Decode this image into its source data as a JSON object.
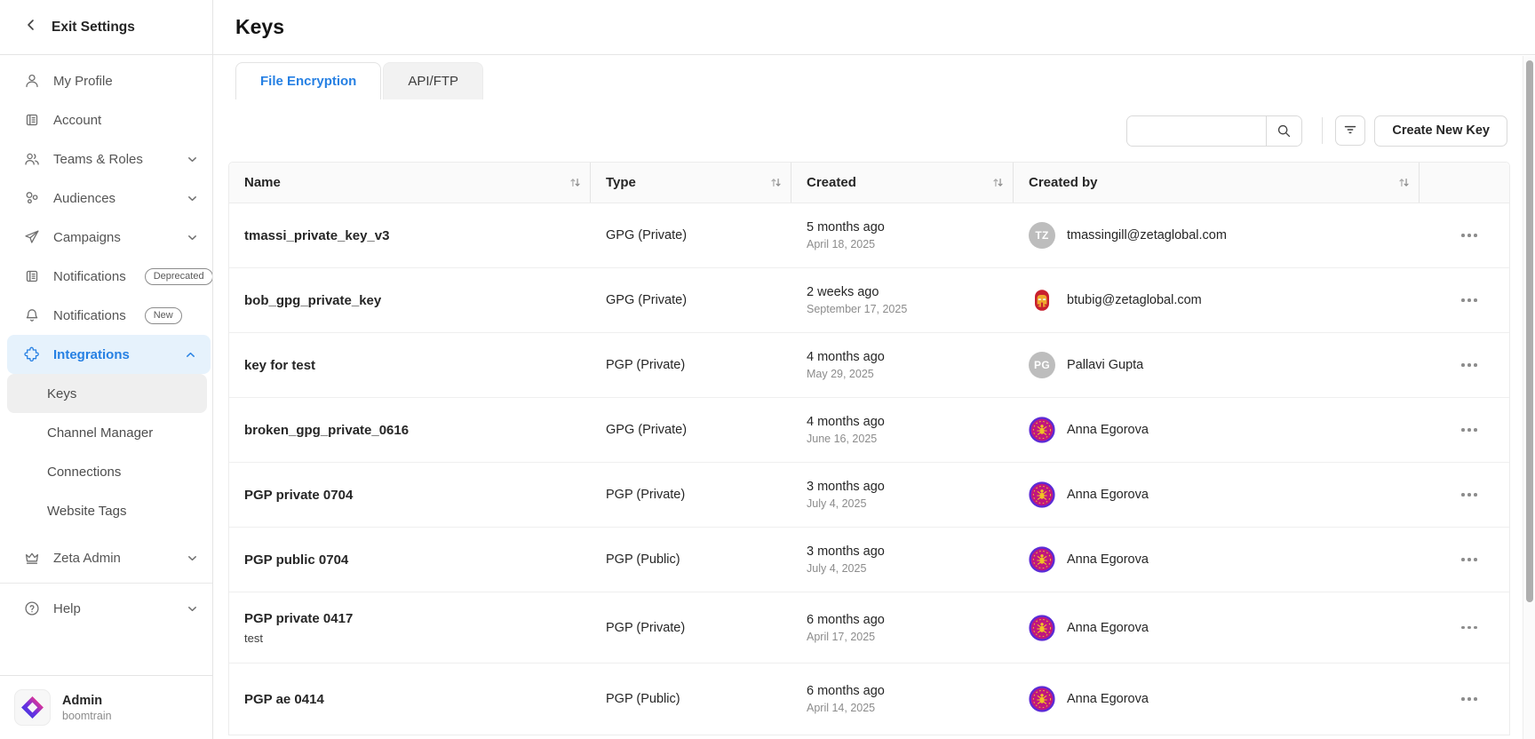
{
  "colors": {
    "accent": "#2680e3",
    "accent_bg": "#e6f2fc"
  },
  "sidebar": {
    "exit_label": "Exit Settings",
    "items": [
      {
        "label": "My Profile",
        "icon": "user"
      },
      {
        "label": "Account",
        "icon": "org"
      },
      {
        "label": "Teams & Roles",
        "icon": "users",
        "chevron": "down"
      },
      {
        "label": "Audiences",
        "icon": "bubbles",
        "chevron": "down"
      },
      {
        "label": "Campaigns",
        "icon": "plane",
        "chevron": "down"
      },
      {
        "label": "Notifications",
        "icon": "org",
        "badge": "Deprecated"
      },
      {
        "label": "Notifications",
        "icon": "bell",
        "badge": "New"
      },
      {
        "label": "Integrations",
        "icon": "puzzle",
        "chevron": "up",
        "active": true
      }
    ],
    "sub_items": [
      "Keys",
      "Channel Manager",
      "Connections",
      "Website Tags"
    ],
    "lower_items": [
      {
        "label": "Zeta Admin",
        "icon": "crown",
        "chevron": "down"
      },
      {
        "label": "Help",
        "icon": "help",
        "chevron": "down"
      }
    ],
    "account": {
      "name": "Admin",
      "org": "boomtrain"
    }
  },
  "header": {
    "title": "Keys"
  },
  "tabs": [
    {
      "label": "File Encryption",
      "active": true
    },
    {
      "label": "API/FTP",
      "active": false
    }
  ],
  "toolbar": {
    "search_value": "",
    "create_label": "Create New Key"
  },
  "table": {
    "columns": [
      "Name",
      "Type",
      "Created",
      "Created by"
    ],
    "rows": [
      {
        "name": "tmassi_private_key_v3",
        "type": "GPG (Private)",
        "created_rel": "5 months ago",
        "created_date": "April 18, 2025",
        "creator": "tmassingill@zetaglobal.com",
        "avatar": "TZ",
        "avatar_type": "initials"
      },
      {
        "name": "bob_gpg_private_key",
        "type": "GPG (Private)",
        "created_rel": "2 weeks ago",
        "created_date": "September 17, 2025",
        "creator": "btubig@zetaglobal.com",
        "avatar": "",
        "avatar_type": "ironman"
      },
      {
        "name": "key for test",
        "type": "PGP (Private)",
        "created_rel": "4 months ago",
        "created_date": "May 29, 2025",
        "creator": "Pallavi Gupta",
        "avatar": "PG",
        "avatar_type": "initials"
      },
      {
        "name": "broken_gpg_private_0616",
        "type": "GPG (Private)",
        "created_rel": "4 months ago",
        "created_date": "June 16, 2025",
        "creator": "Anna Egorova",
        "avatar": "",
        "avatar_type": "bug"
      },
      {
        "name": "PGP private 0704",
        "type": "PGP (Private)",
        "created_rel": "3 months ago",
        "created_date": "July 4, 2025",
        "creator": "Anna Egorova",
        "avatar": "",
        "avatar_type": "bug"
      },
      {
        "name": "PGP public 0704",
        "type": "PGP (Public)",
        "created_rel": "3 months ago",
        "created_date": "July 4, 2025",
        "creator": "Anna Egorova",
        "avatar": "",
        "avatar_type": "bug"
      },
      {
        "name": "PGP private 0417",
        "subtitle": "test",
        "type": "PGP (Private)",
        "created_rel": "6 months ago",
        "created_date": "April 17, 2025",
        "creator": "Anna Egorova",
        "avatar": "",
        "avatar_type": "bug"
      },
      {
        "name": "PGP ae 0414",
        "type": "PGP (Public)",
        "created_rel": "6 months ago",
        "created_date": "April 14, 2025",
        "creator": "Anna Egorova",
        "avatar": "",
        "avatar_type": "bug"
      }
    ]
  }
}
